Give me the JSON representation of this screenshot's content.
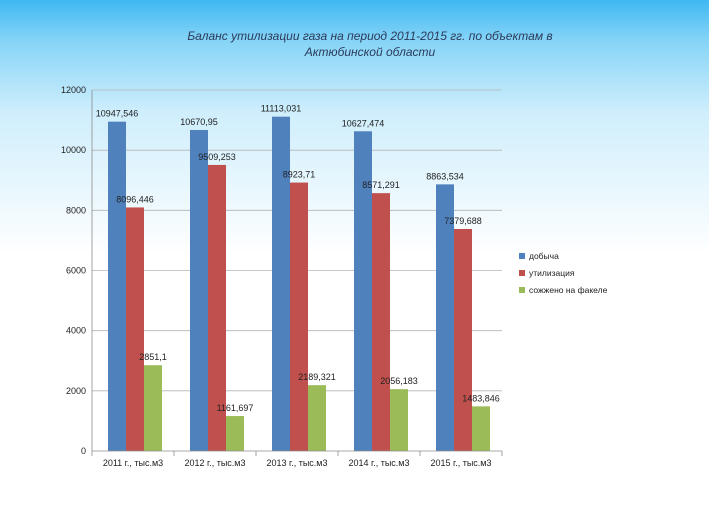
{
  "slide": {
    "title_line1": "Баланс утилизации газа на период 2011-2015 гг. по объектам в",
    "title_line2": "Актюбинской области"
  },
  "chart_data": {
    "type": "bar",
    "title": "",
    "xlabel": "",
    "ylabel": "",
    "categories": [
      "2011 г., тыс.м3",
      "2012 г., тыс.м3",
      "2013 г., тыс.м3",
      "2014 г., тыс.м3",
      "2015 г., тыс.м3"
    ],
    "series": [
      {
        "name": "добыча",
        "color": "#4f81bd",
        "values": [
          10947.546,
          10670.95,
          11113.031,
          10627.474,
          8863.534
        ],
        "labels": [
          "10947,546",
          "10670,95",
          "11113,031",
          "10627,474",
          "8863,534"
        ]
      },
      {
        "name": "утилизация",
        "color": "#c0504d",
        "values": [
          8096.446,
          9509.253,
          8923.71,
          8571.291,
          7379.688
        ],
        "labels": [
          "8096,446",
          "9509,253",
          "8923,71",
          "8571,291",
          "7379,688"
        ]
      },
      {
        "name": "сожжено на факеле",
        "color": "#9bbb59",
        "values": [
          2851.1,
          1161.697,
          2189.321,
          2056.183,
          1483.846
        ],
        "labels": [
          "2851,1",
          "1161,697",
          "2189,321",
          "2056,183",
          "1483,846"
        ]
      }
    ],
    "ylim": [
      0,
      12000
    ],
    "yticks": [
      0,
      2000,
      4000,
      6000,
      8000,
      10000,
      12000
    ],
    "ytick_labels": [
      "0",
      "2000",
      "4000",
      "6000",
      "8000",
      "10000",
      "12000"
    ],
    "grid": true,
    "legend_position": "right"
  }
}
